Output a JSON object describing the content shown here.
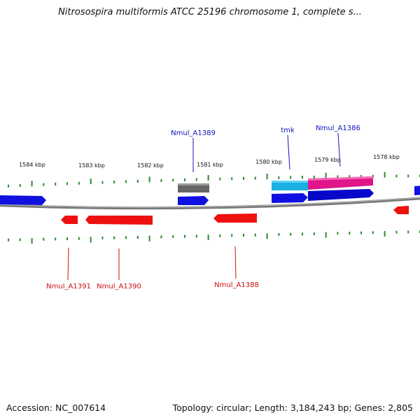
{
  "header": {
    "title": "Nitrosospira multiformis ATCC 25196 chromosome 1, complete s..."
  },
  "footer": {
    "accession": "Accession: NC_007614",
    "summary": "Topology: circular; Length: 3,184,243 bp; Genes: 2,805"
  },
  "colors": {
    "backbone": "#8a8a8a",
    "forward_gene": "#1010e0",
    "reverse_gene": "#ee1010",
    "gray_gene": "#666666",
    "cyan_gene": "#1ab0e0",
    "magenta_gene": "#e0158a",
    "tick": "#2a8a2a",
    "forward_label": "#1010c0",
    "reverse_label": "#cc1010"
  },
  "ticks": [
    {
      "label": "1584 kbp"
    },
    {
      "label": "1583 kbp"
    },
    {
      "label": "1582 kbp"
    },
    {
      "label": "1581 kbp"
    },
    {
      "label": "1580 kbp"
    },
    {
      "label": "1579 kbp"
    },
    {
      "label": "1578 kbp"
    }
  ],
  "genes": {
    "forward": [
      {
        "id": "fwd-left",
        "color": "forward_gene"
      },
      {
        "id": "Nmul_A1389",
        "color": "forward_gene"
      },
      {
        "id": "tmk",
        "color": "forward_gene"
      },
      {
        "id": "Nmul_A1386",
        "color": "forward_gene"
      },
      {
        "id": "fwd-right",
        "color": "forward_gene"
      }
    ],
    "forward_features": [
      {
        "id": "gray-feature",
        "color": "gray_gene"
      },
      {
        "id": "cyan-feature",
        "color": "cyan_gene"
      },
      {
        "id": "magenta-feature",
        "color": "magenta_gene"
      }
    ],
    "reverse": [
      {
        "id": "Nmul_A1391",
        "color": "reverse_gene"
      },
      {
        "id": "Nmul_A1390",
        "color": "reverse_gene"
      },
      {
        "id": "Nmul_A1388",
        "color": "reverse_gene"
      },
      {
        "id": "rev-right",
        "color": "reverse_gene"
      }
    ]
  },
  "labels": {
    "forward": [
      "Nmul_A1389",
      "tmk",
      "Nmul_A1386"
    ],
    "reverse": [
      "Nmul_A1391",
      "Nmul_A1390",
      "Nmul_A1388"
    ]
  }
}
